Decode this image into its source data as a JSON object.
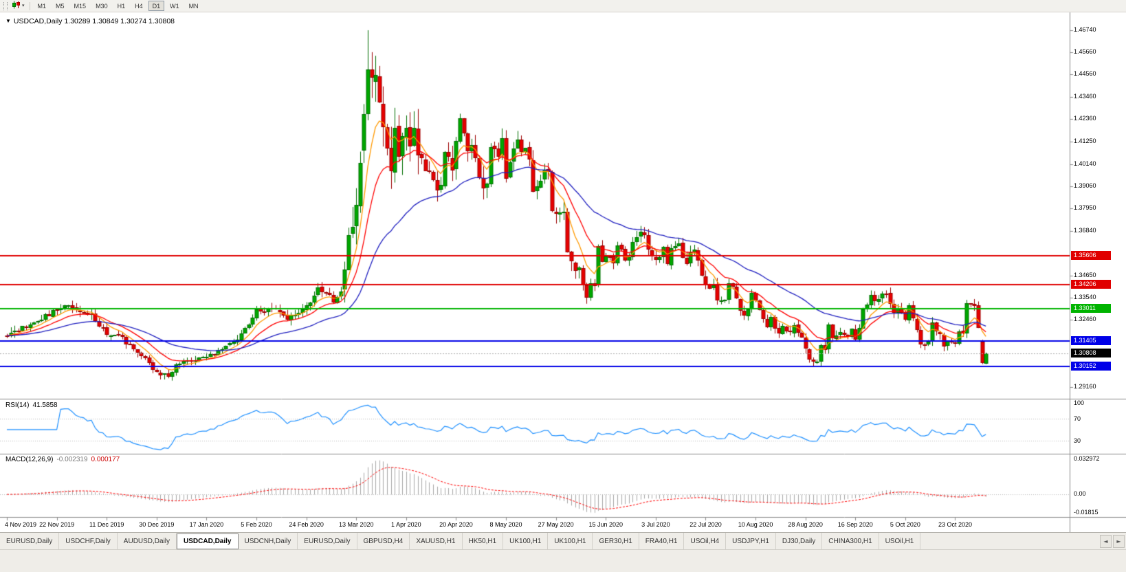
{
  "toolbar": {
    "timeframes": [
      "M1",
      "M5",
      "M15",
      "M30",
      "H1",
      "H4",
      "D1",
      "W1",
      "MN"
    ],
    "active_timeframe": "D1"
  },
  "icons": {
    "caret_down": "▾",
    "title_arrow": "▼",
    "tab_prev": "◄",
    "tab_next": "►"
  },
  "chart": {
    "symbol": "USDCAD,Daily",
    "ohlc": "1.30289 1.30849 1.30274 1.30808"
  },
  "price_axis": {
    "ticks": [
      "1.46740",
      "1.45660",
      "1.44560",
      "1.43460",
      "1.42360",
      "1.41250",
      "1.40140",
      "1.39060",
      "1.37950",
      "1.36840",
      "1.34650",
      "1.33540",
      "1.32460",
      "1.29160"
    ]
  },
  "hlines": [
    {
      "label": "1.35606",
      "value": 1.35606,
      "color": "#e00000",
      "width": 2
    },
    {
      "label": "1.34206",
      "value": 1.34206,
      "color": "#e00000",
      "width": 2
    },
    {
      "label": "1.33011",
      "value": 1.33011,
      "color": "#00b400",
      "width": 2
    },
    {
      "label": "1.31405",
      "value": 1.31405,
      "color": "#0000e8",
      "width": 2
    },
    {
      "label": "1.30152",
      "value": 1.30152,
      "color": "#0000e8",
      "width": 2
    }
  ],
  "current_price": {
    "label": "1.30808",
    "value": 1.30808,
    "badge_color": "#000000"
  },
  "rsi_panel": {
    "label": "RSI(14)",
    "value_text": "41.5858",
    "line_color": "#1e90ff",
    "levels": [
      {
        "label": "100",
        "value": 100
      },
      {
        "label": "70",
        "value": 70
      },
      {
        "label": "30",
        "value": 30
      }
    ]
  },
  "macd_panel": {
    "label": "MACD(12,26,9)",
    "value_main": "-0.002319",
    "value_signal": "0.000177",
    "hist_color": "#a8a8a8",
    "signal_color": "#ff0000",
    "axis": {
      "top": "0.032972",
      "zero": "0.00",
      "bottom": "-0.01815"
    },
    "ylim": [
      -0.0185,
      0.033
    ]
  },
  "date_axis": {
    "labels": [
      "4 Nov 2019",
      "22 Nov 2019",
      "11 Dec 2019",
      "30 Dec 2019",
      "17 Jan 2020",
      "5 Feb 2020",
      "24 Feb 2020",
      "13 Mar 2020",
      "1 Apr 2020",
      "20 Apr 2020",
      "8 May 2020",
      "27 May 2020",
      "15 Jun 2020",
      "3 Jul 2020",
      "22 Jul 2020",
      "10 Aug 2020",
      "28 Aug 2020",
      "16 Sep 2020",
      "5 Oct 2020",
      "23 Oct 2020"
    ]
  },
  "tabs": {
    "items": [
      "EURUSD,Daily",
      "USDCHF,Daily",
      "AUDUSD,Daily",
      "USDCAD,Daily",
      "USDCNH,Daily",
      "EURUSD,Daily",
      "GBPUSD,H4",
      "XAUUSD,H1",
      "HK50,H1",
      "UK100,H1",
      "UK100,H1",
      "GER30,H1",
      "FRA40,H1",
      "USOil,H4",
      "USDJPY,H1",
      "DJ30,Daily",
      "CHINA300,H1",
      "USOil,H1"
    ],
    "active_index": 3
  },
  "chart_data": {
    "type": "candlestick",
    "symbol": "USDCAD",
    "timeframe": "Daily",
    "bars": 256,
    "price_range_visible": [
      1.2857,
      1.4762
    ],
    "high_of_period": 1.4674,
    "low_of_period": 1.2952,
    "close_anchors": [
      [
        0,
        1.317
      ],
      [
        4,
        1.3205
      ],
      [
        8,
        1.324
      ],
      [
        13,
        1.33
      ],
      [
        16,
        1.331
      ],
      [
        19,
        1.3295
      ],
      [
        22,
        1.327
      ],
      [
        26,
        1.317
      ],
      [
        29,
        1.3165
      ],
      [
        32,
        1.312
      ],
      [
        35,
        1.3075
      ],
      [
        38,
        1.301
      ],
      [
        40,
        1.298
      ],
      [
        42,
        1.2965
      ],
      [
        44,
        1.302
      ],
      [
        48,
        1.305
      ],
      [
        52,
        1.3065
      ],
      [
        56,
        1.31
      ],
      [
        60,
        1.315
      ],
      [
        63,
        1.322
      ],
      [
        65,
        1.329
      ],
      [
        68,
        1.33
      ],
      [
        70,
        1.3305
      ],
      [
        73,
        1.3255
      ],
      [
        76,
        1.328
      ],
      [
        78,
        1.331
      ],
      [
        80,
        1.336
      ],
      [
        81,
        1.34
      ],
      [
        83,
        1.338
      ],
      [
        85,
        1.334
      ],
      [
        87,
        1.339
      ],
      [
        89,
        1.365
      ],
      [
        90,
        1.372
      ],
      [
        91,
        1.385
      ],
      [
        92,
        1.399
      ],
      [
        93,
        1.426
      ],
      [
        94,
        1.448
      ],
      [
        95,
        1.444
      ],
      [
        96,
        1.449
      ],
      [
        97,
        1.433
      ],
      [
        98,
        1.418
      ],
      [
        99,
        1.406
      ],
      [
        100,
        1.399
      ],
      [
        101,
        1.418
      ],
      [
        102,
        1.406
      ],
      [
        103,
        1.419
      ],
      [
        104,
        1.42
      ],
      [
        105,
        1.414
      ],
      [
        106,
        1.421
      ],
      [
        107,
        1.408
      ],
      [
        108,
        1.402
      ],
      [
        110,
        1.396
      ],
      [
        112,
        1.387
      ],
      [
        113,
        1.39
      ],
      [
        114,
        1.409
      ],
      [
        115,
        1.404
      ],
      [
        116,
        1.4
      ],
      [
        117,
        1.413
      ],
      [
        118,
        1.422
      ],
      [
        119,
        1.416
      ],
      [
        120,
        1.406
      ],
      [
        121,
        1.41
      ],
      [
        122,
        1.403
      ],
      [
        123,
        1.396
      ],
      [
        124,
        1.388
      ],
      [
        125,
        1.394
      ],
      [
        126,
        1.409
      ],
      [
        127,
        1.408
      ],
      [
        128,
        1.403
      ],
      [
        129,
        1.413
      ],
      [
        130,
        1.392
      ],
      [
        131,
        1.404
      ],
      [
        132,
        1.409
      ],
      [
        133,
        1.412
      ],
      [
        134,
        1.406
      ],
      [
        135,
        1.411
      ],
      [
        136,
        1.405
      ],
      [
        137,
        1.389
      ],
      [
        139,
        1.394
      ],
      [
        140,
        1.399
      ],
      [
        141,
        1.398
      ],
      [
        142,
        1.378
      ],
      [
        143,
        1.375
      ],
      [
        145,
        1.378
      ],
      [
        146,
        1.357
      ],
      [
        147,
        1.352
      ],
      [
        149,
        1.349
      ],
      [
        150,
        1.342
      ],
      [
        151,
        1.336
      ],
      [
        152,
        1.343
      ],
      [
        153,
        1.341
      ],
      [
        154,
        1.362
      ],
      [
        155,
        1.354
      ],
      [
        156,
        1.355
      ],
      [
        158,
        1.354
      ],
      [
        159,
        1.36
      ],
      [
        160,
        1.36
      ],
      [
        161,
        1.353
      ],
      [
        162,
        1.356
      ],
      [
        163,
        1.364
      ],
      [
        165,
        1.369
      ],
      [
        166,
        1.365
      ],
      [
        167,
        1.358
      ],
      [
        169,
        1.355
      ],
      [
        170,
        1.354
      ],
      [
        171,
        1.361
      ],
      [
        172,
        1.351
      ],
      [
        173,
        1.359
      ],
      [
        175,
        1.361
      ],
      [
        177,
        1.351
      ],
      [
        178,
        1.357
      ],
      [
        179,
        1.358
      ],
      [
        180,
        1.353
      ],
      [
        181,
        1.345
      ],
      [
        182,
        1.341
      ],
      [
        184,
        1.341
      ],
      [
        185,
        1.335
      ],
      [
        187,
        1.334
      ],
      [
        188,
        1.343
      ],
      [
        189,
        1.341
      ],
      [
        191,
        1.33
      ],
      [
        192,
        1.327
      ],
      [
        193,
        1.33
      ],
      [
        194,
        1.338
      ],
      [
        195,
        1.335
      ],
      [
        196,
        1.33
      ],
      [
        197,
        1.326
      ],
      [
        198,
        1.322
      ],
      [
        199,
        1.326
      ],
      [
        200,
        1.32
      ],
      [
        201,
        1.317
      ],
      [
        202,
        1.322
      ],
      [
        204,
        1.318
      ],
      [
        205,
        1.322
      ],
      [
        207,
        1.316
      ],
      [
        208,
        1.31
      ],
      [
        209,
        1.304
      ],
      [
        210,
        1.303
      ],
      [
        211,
        1.305
      ],
      [
        212,
        1.313
      ],
      [
        213,
        1.31
      ],
      [
        214,
        1.323
      ],
      [
        215,
        1.316
      ],
      [
        217,
        1.318
      ],
      [
        219,
        1.317
      ],
      [
        220,
        1.32
      ],
      [
        221,
        1.316
      ],
      [
        222,
        1.32
      ],
      [
        223,
        1.331
      ],
      [
        224,
        1.332
      ],
      [
        225,
        1.338
      ],
      [
        226,
        1.334
      ],
      [
        228,
        1.338
      ],
      [
        229,
        1.338
      ],
      [
        230,
        1.332
      ],
      [
        231,
        1.328
      ],
      [
        232,
        1.331
      ],
      [
        233,
        1.328
      ],
      [
        234,
        1.325
      ],
      [
        235,
        1.331
      ],
      [
        236,
        1.325
      ],
      [
        237,
        1.319
      ],
      [
        238,
        1.312
      ],
      [
        240,
        1.314
      ],
      [
        241,
        1.323
      ],
      [
        242,
        1.319
      ],
      [
        243,
        1.318
      ],
      [
        244,
        1.312
      ],
      [
        245,
        1.314
      ],
      [
        247,
        1.312
      ],
      [
        248,
        1.32
      ],
      [
        249,
        1.318
      ],
      [
        250,
        1.332
      ],
      [
        251,
        1.333
      ],
      [
        252,
        1.332
      ],
      [
        253,
        1.321
      ],
      [
        254,
        1.3035
      ],
      [
        255,
        1.3081
      ]
    ],
    "volatility_zones": [
      [
        0,
        38,
        1
      ],
      [
        39,
        60,
        0.8
      ],
      [
        61,
        87,
        1
      ],
      [
        88,
        107,
        3.8
      ],
      [
        108,
        130,
        2.2
      ],
      [
        131,
        150,
        1.8
      ],
      [
        151,
        185,
        1.3
      ],
      [
        186,
        255,
        1
      ]
    ],
    "bar_overrides": {
      "41": {
        "l": 1.2952
      },
      "93": {
        "o": 1.408,
        "h": 1.431,
        "l": 1.402,
        "c": 1.426
      },
      "94": {
        "o": 1.426,
        "h": 1.4674,
        "l": 1.423,
        "c": 1.448
      },
      "95": {
        "o": 1.448,
        "h": 1.4566,
        "l": 1.434,
        "c": 1.444
      },
      "254": {
        "o": 1.314,
        "h": 1.3148,
        "l": 1.3028,
        "c": 1.3035
      },
      "255": {
        "o": 1.30289,
        "h": 1.30849,
        "l": 1.30274,
        "c": 1.30808
      }
    },
    "candle_colors": {
      "up_fill": "#00a800",
      "up_line": "#006e00",
      "down_fill": "#e80000",
      "down_line": "#9c0000"
    },
    "moving_averages": [
      {
        "period": 7,
        "method": "ema",
        "color": "#ff9900"
      },
      {
        "period": 15,
        "method": "ema",
        "color": "#ff0000"
      },
      {
        "period": 38,
        "method": "ema",
        "color": "#2020c0"
      }
    ],
    "indicators": [
      "RSI(14)",
      "MACD(12,26,9)"
    ]
  }
}
